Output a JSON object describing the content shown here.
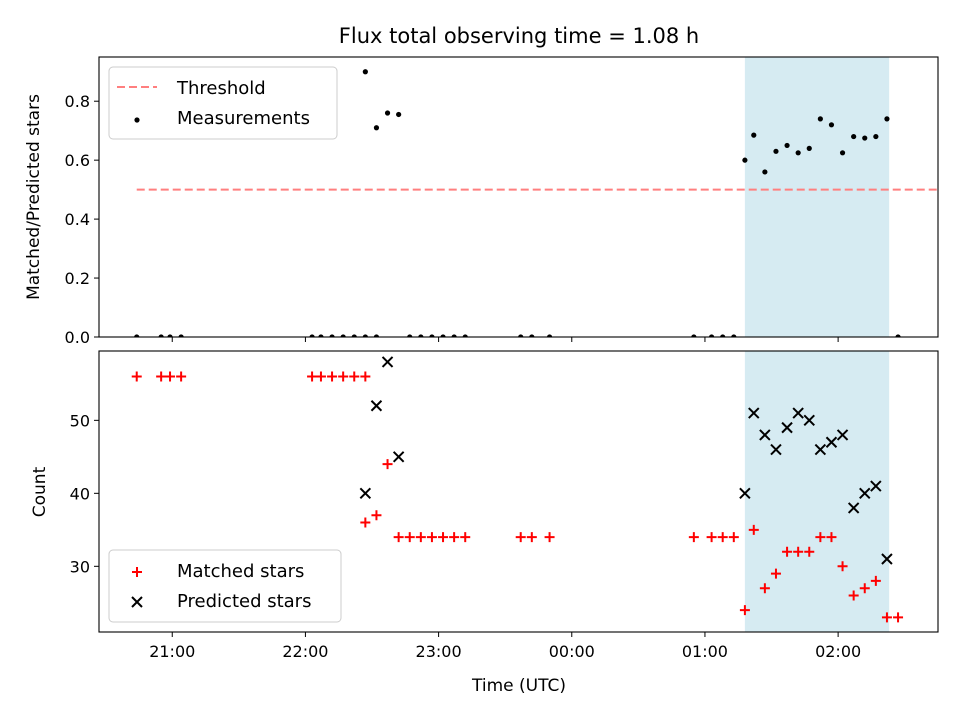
{
  "chart_data": [
    {
      "type": "scatter",
      "title": "Flux total observing time = 1.08 h",
      "ylabel": "Matched/Predicted stars",
      "xlabel": "",
      "xlim": [
        "20:27",
        "02:45"
      ],
      "ylim": [
        0,
        0.95
      ],
      "yticks": [
        0.0,
        0.2,
        0.4,
        0.6,
        0.8
      ],
      "ytick_labels": [
        "0.0",
        "0.2",
        "0.4",
        "0.6",
        "0.8"
      ],
      "shaded_span": [
        "01:18",
        "02:23"
      ],
      "shaded_color": "#add8e6",
      "legend_position": "top-left",
      "series": [
        {
          "name": "Threshold",
          "kind": "dashed-line",
          "color": "#ff7f7f",
          "x": [
            "20:44",
            "02:45"
          ],
          "y": [
            0.5,
            0.5
          ]
        },
        {
          "name": "Measurements",
          "kind": "dots",
          "color": "#000000",
          "x": [
            "20:44",
            "20:55",
            "20:59",
            "21:04",
            "22:03",
            "22:07",
            "22:12",
            "22:17",
            "22:22",
            "22:27",
            "22:32",
            "22:27",
            "22:32",
            "22:37",
            "22:42",
            "22:47",
            "22:52",
            "22:57",
            "23:02",
            "23:07",
            "23:12",
            "23:37",
            "23:42",
            "23:50",
            "00:55",
            "01:03",
            "01:08",
            "01:13",
            "01:18",
            "01:22",
            "01:27",
            "01:32",
            "01:37",
            "01:42",
            "01:47",
            "01:52",
            "01:57",
            "02:02",
            "02:07",
            "02:12",
            "02:17",
            "02:22",
            "02:27"
          ],
          "y": [
            0,
            0,
            0,
            0,
            0,
            0,
            0,
            0,
            0,
            0,
            0,
            0.9,
            0.71,
            0.76,
            0.755,
            0,
            0,
            0,
            0,
            0,
            0,
            0,
            0,
            0,
            0,
            0,
            0,
            0,
            0.6,
            0.685,
            0.56,
            0.63,
            0.65,
            0.625,
            0.64,
            0.74,
            0.72,
            0.625,
            0.68,
            0.675,
            0.68,
            0.74,
            0
          ]
        }
      ]
    },
    {
      "type": "scatter",
      "xlabel": "Time (UTC)",
      "ylabel": "Count",
      "xlim": [
        "20:27",
        "02:45"
      ],
      "ylim": [
        21,
        59.5
      ],
      "yticks": [
        30,
        40,
        50
      ],
      "ytick_labels": [
        "30",
        "40",
        "50"
      ],
      "xticks": [
        "21:00",
        "22:00",
        "23:00",
        "00:00",
        "01:00",
        "02:00"
      ],
      "shaded_span": [
        "01:18",
        "02:23"
      ],
      "shaded_color": "#add8e6",
      "legend_position": "bottom-left",
      "series": [
        {
          "name": "Matched stars",
          "kind": "plus",
          "color": "#ff0000",
          "x": [
            "20:44",
            "20:55",
            "20:59",
            "21:04",
            "22:03",
            "22:07",
            "22:12",
            "22:17",
            "22:22",
            "22:27",
            "22:27",
            "22:32",
            "22:37",
            "22:42",
            "22:47",
            "22:52",
            "22:57",
            "23:02",
            "23:07",
            "23:12",
            "23:37",
            "23:42",
            "23:50",
            "00:55",
            "01:03",
            "01:08",
            "01:13",
            "01:18",
            "01:22",
            "01:27",
            "01:32",
            "01:37",
            "01:42",
            "01:47",
            "01:52",
            "01:57",
            "02:02",
            "02:07",
            "02:12",
            "02:17",
            "02:22",
            "02:27"
          ],
          "y": [
            56,
            56,
            56,
            56,
            56,
            56,
            56,
            56,
            56,
            56,
            36,
            37,
            44,
            34,
            34,
            34,
            34,
            34,
            34,
            34,
            34,
            34,
            34,
            34,
            34,
            34,
            34,
            24,
            35,
            27,
            29,
            32,
            32,
            32,
            34,
            34,
            30,
            26,
            27,
            28,
            23,
            23
          ]
        },
        {
          "name": "Predicted stars",
          "kind": "cross",
          "color": "#000000",
          "x": [
            "22:27",
            "22:32",
            "22:37",
            "22:42",
            "01:18",
            "01:22",
            "01:27",
            "01:32",
            "01:37",
            "01:42",
            "01:47",
            "01:52",
            "01:57",
            "02:02",
            "02:07",
            "02:12",
            "02:17",
            "02:22"
          ],
          "y": [
            40,
            52,
            58,
            45,
            40,
            51,
            48,
            46,
            49,
            51,
            50,
            46,
            47,
            48,
            38,
            40,
            41,
            31
          ]
        }
      ]
    }
  ]
}
